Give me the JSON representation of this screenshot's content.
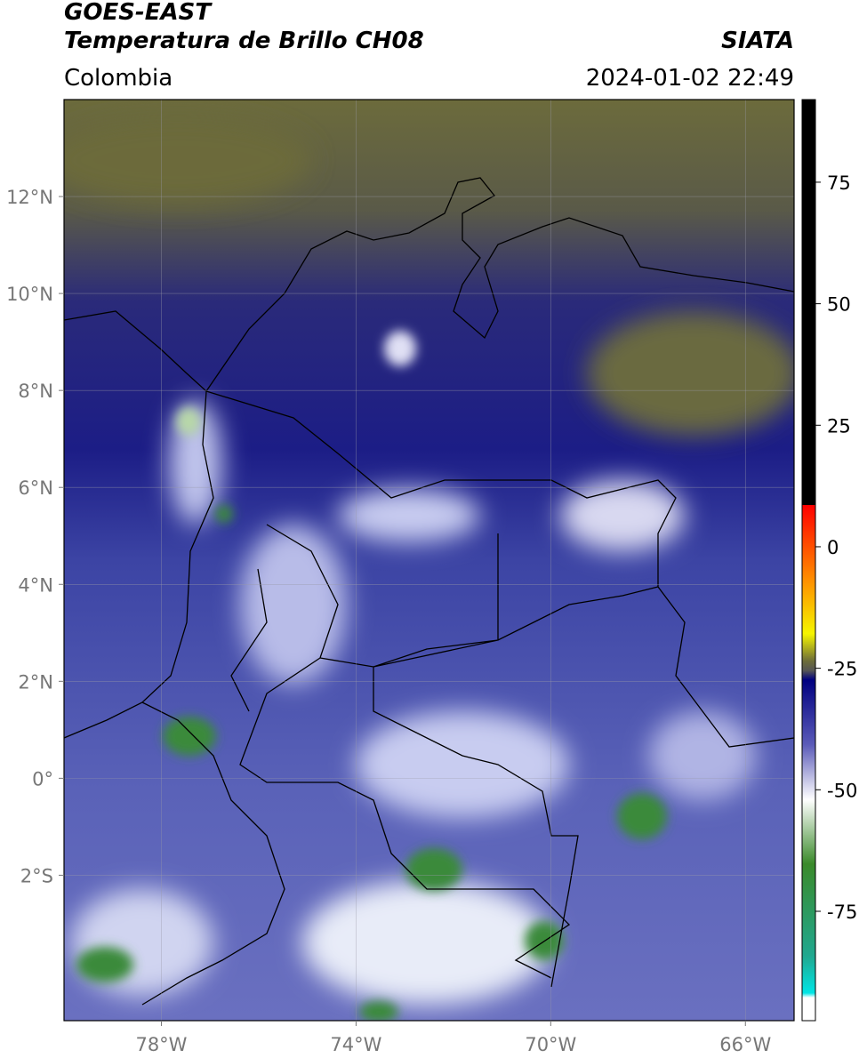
{
  "header": {
    "title": "GOES-EAST",
    "subtitle": "Temperatura de Brillo CH08",
    "source": "SIATA",
    "region": "Colombia",
    "timestamp": "2024-01-02 22:49"
  },
  "map": {
    "xlim": [
      -80,
      -65
    ],
    "ylim": [
      -5,
      14
    ],
    "xticks": [
      {
        "value": -78,
        "label": "78°W"
      },
      {
        "value": -74,
        "label": "74°W"
      },
      {
        "value": -70,
        "label": "70°W"
      },
      {
        "value": -66,
        "label": "66°W"
      }
    ],
    "yticks": [
      {
        "value": 12,
        "label": "12°N"
      },
      {
        "value": 10,
        "label": "10°N"
      },
      {
        "value": 8,
        "label": "8°N"
      },
      {
        "value": 6,
        "label": "6°N"
      },
      {
        "value": 4,
        "label": "4°N"
      },
      {
        "value": 2,
        "label": "2°N"
      },
      {
        "value": 0,
        "label": "0°"
      },
      {
        "value": -2,
        "label": "2°S"
      }
    ],
    "grid": true
  },
  "colorbar": {
    "lim": [
      -97.5,
      92
    ],
    "ticks": [
      75,
      50,
      25,
      0,
      -25,
      -50,
      -75
    ]
  }
}
